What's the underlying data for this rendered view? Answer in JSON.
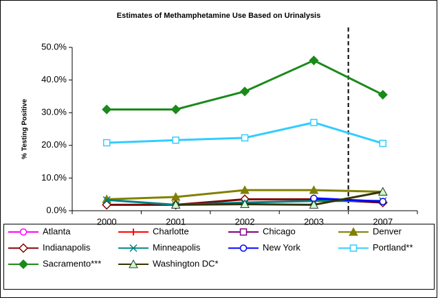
{
  "chart_data": {
    "type": "line",
    "title": "Estimates of Methamphetamine Use Based on Urinalysis",
    "y_label": "% Testing Positive",
    "categories": [
      "2000",
      "2001",
      "2002",
      "2003",
      "2007"
    ],
    "ylim": [
      0,
      50
    ],
    "yticks": [
      {
        "value": 0,
        "label": "0.0%"
      },
      {
        "value": 10,
        "label": "10.0%"
      },
      {
        "value": 20,
        "label": "20.0%"
      },
      {
        "value": 30,
        "label": "30.0%"
      },
      {
        "value": 40,
        "label": "40.0%"
      },
      {
        "value": 50,
        "label": "50.0%"
      }
    ],
    "grid": false,
    "legend": "bottom",
    "series": [
      {
        "name": "Atlanta",
        "color": "#ff00ff",
        "marker": "circle",
        "values": [
          null,
          null,
          null,
          null,
          null
        ]
      },
      {
        "name": "Charlotte",
        "color": "#ff0000",
        "marker": "plus",
        "values": [
          null,
          null,
          null,
          null,
          null
        ]
      },
      {
        "name": "Chicago",
        "color": "#800080",
        "marker": "square",
        "values": [
          null,
          null,
          null,
          null,
          null
        ]
      },
      {
        "name": "Denver",
        "color": "#808000",
        "marker": "triangle",
        "values": [
          3.5,
          4.2,
          6.3,
          6.3,
          5.8
        ]
      },
      {
        "name": "Indianapolis",
        "color": "#800000",
        "marker": "diamond",
        "values": [
          1.8,
          1.8,
          3.5,
          3.5,
          2.5
        ]
      },
      {
        "name": "Minneapolis",
        "color": "#008080",
        "marker": "x",
        "values": [
          3.3,
          1.8,
          2.5,
          3.0,
          3.0
        ]
      },
      {
        "name": "New York",
        "color": "#0000ff",
        "marker": "circle",
        "values": [
          null,
          null,
          null,
          3.8,
          2.8
        ]
      },
      {
        "name": "Portland**",
        "color": "#33ccff",
        "marker": "square",
        "values": [
          20.8,
          21.6,
          22.3,
          27.0,
          20.6
        ]
      },
      {
        "name": "Sacramento***",
        "color": "#1a8a1a",
        "marker": "diamond",
        "values": [
          31.0,
          31.0,
          36.5,
          46.0,
          35.5
        ]
      },
      {
        "name": "Washington DC*",
        "color": "#333300",
        "marker": "triangle",
        "marker_fill": "#ccffcc",
        "values": [
          null,
          1.8,
          2.0,
          1.8,
          5.8
        ]
      }
    ]
  }
}
